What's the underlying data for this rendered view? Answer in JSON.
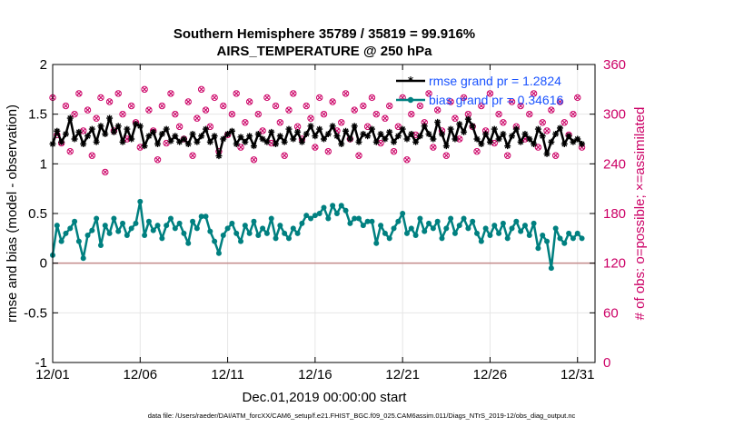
{
  "chart_data": {
    "type": "line",
    "title": "Southern Hemisphere 35789 / 35819 = 99.916%",
    "subtitle": "AIRS_TEMPERATURE @ 250 hPa",
    "xlabel": "Dec.01,2019 00:00:00 start",
    "ylabel_left": "rmse and bias (model - observation)",
    "ylabel_right": "# of obs: o=possible; ×=assimilated",
    "xlim": [
      1,
      32
    ],
    "ylim_left": [
      -1,
      2
    ],
    "ylim_right": [
      0,
      360
    ],
    "x_ticks": [
      1,
      6,
      11,
      16,
      21,
      26,
      31
    ],
    "x_tick_labels": [
      "12/01",
      "12/06",
      "12/11",
      "12/16",
      "12/21",
      "12/26",
      "12/31"
    ],
    "y_ticks_left": [
      -1,
      -0.5,
      0,
      0.5,
      1,
      1.5,
      2
    ],
    "y_tick_labels_left": [
      "-1",
      "-0.5",
      "0",
      "0.5",
      "1",
      "1.5",
      "2"
    ],
    "y_ticks_right": [
      0,
      60,
      120,
      180,
      240,
      300,
      360
    ],
    "y_tick_labels_right": [
      "0",
      "60",
      "120",
      "180",
      "240",
      "300",
      "360"
    ],
    "colors": {
      "rmse": "#000000",
      "bias": "#008080",
      "obs": "#cc0066",
      "zero_line": "#c48a8a",
      "grid": "#e6e6e6"
    },
    "series": [
      {
        "name": "rmse",
        "legend": "rmse grand pr = 1.2824",
        "color": "#000000",
        "marker": "asterisk",
        "x": [
          1.0,
          1.25,
          1.5,
          1.75,
          2.0,
          2.25,
          2.5,
          2.75,
          3.0,
          3.25,
          3.5,
          3.75,
          4.0,
          4.25,
          4.5,
          4.75,
          5.0,
          5.25,
          5.5,
          5.75,
          6.0,
          6.25,
          6.5,
          6.75,
          7.0,
          7.25,
          7.5,
          7.75,
          8.0,
          8.25,
          8.5,
          8.75,
          9.0,
          9.25,
          9.5,
          9.75,
          10.0,
          10.25,
          10.5,
          10.75,
          11.0,
          11.25,
          11.5,
          11.75,
          12.0,
          12.25,
          12.5,
          12.75,
          13.0,
          13.25,
          13.5,
          13.75,
          14.0,
          14.25,
          14.5,
          14.75,
          15.0,
          15.25,
          15.5,
          15.75,
          16.0,
          16.25,
          16.5,
          16.75,
          17.0,
          17.25,
          17.5,
          17.75,
          18.0,
          18.25,
          18.5,
          18.75,
          19.0,
          19.25,
          19.5,
          19.75,
          20.0,
          20.25,
          20.5,
          20.75,
          21.0,
          21.25,
          21.5,
          21.75,
          22.0,
          22.25,
          22.5,
          22.75,
          23.0,
          23.25,
          23.5,
          23.75,
          24.0,
          24.25,
          24.5,
          24.75,
          25.0,
          25.25,
          25.5,
          25.75,
          26.0,
          26.25,
          26.5,
          26.75,
          27.0,
          27.25,
          27.5,
          27.75,
          28.0,
          28.25,
          28.5,
          28.75,
          29.0,
          29.25,
          29.5,
          29.75,
          30.0,
          30.25,
          30.5,
          30.75,
          31.0,
          31.25
        ],
        "values": [
          1.2,
          1.33,
          1.22,
          1.3,
          1.46,
          1.25,
          1.32,
          1.2,
          1.28,
          1.35,
          1.22,
          1.38,
          1.3,
          1.46,
          1.32,
          1.38,
          1.22,
          1.35,
          1.25,
          1.4,
          1.38,
          1.18,
          1.28,
          1.32,
          1.2,
          1.3,
          1.35,
          1.23,
          1.28,
          1.22,
          1.25,
          1.2,
          1.3,
          1.22,
          1.28,
          1.35,
          1.22,
          1.28,
          1.08,
          1.25,
          1.3,
          1.33,
          1.2,
          1.27,
          1.22,
          1.28,
          1.18,
          1.3,
          1.25,
          1.22,
          1.32,
          1.2,
          1.28,
          1.22,
          1.35,
          1.25,
          1.32,
          1.22,
          1.3,
          1.38,
          1.28,
          1.35,
          1.25,
          1.3,
          1.38,
          1.28,
          1.2,
          1.33,
          1.25,
          1.38,
          1.22,
          1.3,
          1.28,
          1.35,
          1.22,
          1.3,
          1.25,
          1.32,
          1.22,
          1.28,
          1.35,
          1.25,
          1.3,
          1.22,
          1.28,
          1.38,
          1.3,
          1.25,
          1.42,
          1.3,
          1.18,
          1.35,
          1.25,
          1.4,
          1.32,
          1.45,
          1.38,
          1.25,
          1.2,
          1.3,
          1.22,
          1.35,
          1.25,
          1.3,
          1.18,
          1.28,
          1.35,
          1.22,
          1.3,
          1.25,
          1.2,
          1.35,
          1.28,
          1.1,
          1.22,
          1.3,
          1.36,
          1.2,
          1.28,
          1.22,
          1.25,
          1.2
        ]
      },
      {
        "name": "bias",
        "legend": "bias grand pr = 0.34616",
        "color": "#008080",
        "marker": "dot",
        "x": [
          1.0,
          1.25,
          1.5,
          1.75,
          2.0,
          2.25,
          2.5,
          2.75,
          3.0,
          3.25,
          3.5,
          3.75,
          4.0,
          4.25,
          4.5,
          4.75,
          5.0,
          5.25,
          5.5,
          5.75,
          6.0,
          6.25,
          6.5,
          6.75,
          7.0,
          7.25,
          7.5,
          7.75,
          8.0,
          8.25,
          8.5,
          8.75,
          9.0,
          9.25,
          9.5,
          9.75,
          10.0,
          10.25,
          10.5,
          10.75,
          11.0,
          11.25,
          11.5,
          11.75,
          12.0,
          12.25,
          12.5,
          12.75,
          13.0,
          13.25,
          13.5,
          13.75,
          14.0,
          14.25,
          14.5,
          14.75,
          15.0,
          15.25,
          15.5,
          15.75,
          16.0,
          16.25,
          16.5,
          16.75,
          17.0,
          17.25,
          17.5,
          17.75,
          18.0,
          18.25,
          18.5,
          18.75,
          19.0,
          19.25,
          19.5,
          19.75,
          20.0,
          20.25,
          20.5,
          20.75,
          21.0,
          21.25,
          21.5,
          21.75,
          22.0,
          22.25,
          22.5,
          22.75,
          23.0,
          23.25,
          23.5,
          23.75,
          24.0,
          24.25,
          24.5,
          24.75,
          25.0,
          25.25,
          25.5,
          25.75,
          26.0,
          26.25,
          26.5,
          26.75,
          27.0,
          27.25,
          27.5,
          27.75,
          28.0,
          28.25,
          28.5,
          28.75,
          29.0,
          29.25,
          29.5,
          29.75,
          30.0,
          30.25,
          30.5,
          30.75,
          31.0,
          31.25
        ],
        "values": [
          0.08,
          0.38,
          0.22,
          0.3,
          0.35,
          0.42,
          0.22,
          0.05,
          0.28,
          0.33,
          0.45,
          0.18,
          0.38,
          0.3,
          0.45,
          0.32,
          0.4,
          0.28,
          0.35,
          0.4,
          0.62,
          0.28,
          0.42,
          0.33,
          0.38,
          0.25,
          0.38,
          0.45,
          0.35,
          0.4,
          0.3,
          0.2,
          0.42,
          0.35,
          0.47,
          0.47,
          0.32,
          0.22,
          0.1,
          0.28,
          0.35,
          0.4,
          0.3,
          0.22,
          0.38,
          0.3,
          0.42,
          0.28,
          0.35,
          0.3,
          0.45,
          0.25,
          0.38,
          0.3,
          0.25,
          0.35,
          0.3,
          0.4,
          0.48,
          0.45,
          0.48,
          0.5,
          0.56,
          0.45,
          0.58,
          0.5,
          0.58,
          0.53,
          0.4,
          0.45,
          0.45,
          0.38,
          0.42,
          0.42,
          0.2,
          0.38,
          0.3,
          0.25,
          0.35,
          0.42,
          0.5,
          0.3,
          0.35,
          0.28,
          0.45,
          0.32,
          0.4,
          0.35,
          0.42,
          0.25,
          0.35,
          0.45,
          0.3,
          0.38,
          0.45,
          0.35,
          0.42,
          0.3,
          0.22,
          0.35,
          0.28,
          0.38,
          0.3,
          0.4,
          0.25,
          0.35,
          0.42,
          0.32,
          0.38,
          0.28,
          0.4,
          0.15,
          0.28,
          0.22,
          -0.05,
          0.35,
          0.25,
          0.2,
          0.3,
          0.25,
          0.3,
          0.25
        ]
      },
      {
        "name": "obs_possible",
        "axis": "right",
        "color": "#cc0066",
        "marker": "circle",
        "x": [
          1.0,
          1.25,
          1.5,
          1.75,
          2.0,
          2.25,
          2.5,
          2.75,
          3.0,
          3.25,
          3.5,
          3.75,
          4.0,
          4.25,
          4.5,
          4.75,
          5.0,
          5.25,
          5.5,
          5.75,
          6.0,
          6.25,
          6.5,
          6.75,
          7.0,
          7.25,
          7.5,
          7.75,
          8.0,
          8.25,
          8.5,
          8.75,
          9.0,
          9.25,
          9.5,
          9.75,
          10.0,
          10.25,
          10.5,
          10.75,
          11.0,
          11.25,
          11.5,
          11.75,
          12.0,
          12.25,
          12.5,
          12.75,
          13.0,
          13.25,
          13.5,
          13.75,
          14.0,
          14.25,
          14.5,
          14.75,
          15.0,
          15.25,
          15.5,
          15.75,
          16.0,
          16.25,
          16.5,
          16.75,
          17.0,
          17.25,
          17.5,
          17.75,
          18.0,
          18.25,
          18.5,
          18.75,
          19.0,
          19.25,
          19.5,
          19.75,
          20.0,
          20.25,
          20.5,
          20.75,
          21.0,
          21.25,
          21.5,
          21.75,
          22.0,
          22.25,
          22.5,
          22.75,
          23.0,
          23.25,
          23.5,
          23.75,
          24.0,
          24.25,
          24.5,
          24.75,
          25.0,
          25.25,
          25.5,
          25.75,
          26.0,
          26.25,
          26.5,
          26.75,
          27.0,
          27.25,
          27.5,
          27.75,
          28.0,
          28.25,
          28.5,
          28.75,
          29.0,
          29.25,
          29.5,
          29.75,
          30.0,
          30.25,
          30.5,
          30.75,
          31.0,
          31.25
        ],
        "values": [
          320,
          275,
          265,
          310,
          255,
          300,
          325,
          280,
          305,
          250,
          295,
          320,
          230,
          315,
          280,
          325,
          300,
          270,
          310,
          290,
          260,
          330,
          305,
          280,
          245,
          310,
          265,
          325,
          300,
          285,
          270,
          315,
          250,
          295,
          330,
          305,
          285,
          320,
          255,
          310,
          275,
          300,
          325,
          260,
          290,
          315,
          245,
          300,
          280,
          320,
          265,
          310,
          290,
          250,
          305,
          325,
          285,
          270,
          310,
          295,
          260,
          320,
          300,
          255,
          315,
          280,
          290,
          325,
          270,
          305,
          250,
          310,
          285,
          320,
          300,
          265,
          295,
          310,
          255,
          285,
          320,
          245,
          300,
          275,
          310,
          290,
          325,
          260,
          305,
          280,
          250,
          315,
          295,
          270,
          320,
          300,
          285,
          255,
          310,
          280,
          325,
          265,
          300,
          290,
          250,
          315,
          285,
          310,
          270,
          300,
          325,
          260,
          290,
          280,
          305,
          250,
          315,
          290,
          275,
          300,
          320,
          260
        ]
      },
      {
        "name": "obs_assimilated",
        "axis": "right",
        "color": "#cc0066",
        "marker": "x",
        "x": [
          1.0,
          1.25,
          1.5,
          1.75,
          2.0,
          2.25,
          2.5,
          2.75,
          3.0,
          3.25,
          3.5,
          3.75,
          4.0,
          4.25,
          4.5,
          4.75,
          5.0,
          5.25,
          5.5,
          5.75,
          6.0,
          6.25,
          6.5,
          6.75,
          7.0,
          7.25,
          7.5,
          7.75,
          8.0,
          8.25,
          8.5,
          8.75,
          9.0,
          9.25,
          9.5,
          9.75,
          10.0,
          10.25,
          10.5,
          10.75,
          11.0,
          11.25,
          11.5,
          11.75,
          12.0,
          12.25,
          12.5,
          12.75,
          13.0,
          13.25,
          13.5,
          13.75,
          14.0,
          14.25,
          14.5,
          14.75,
          15.0,
          15.25,
          15.5,
          15.75,
          16.0,
          16.25,
          16.5,
          16.75,
          17.0,
          17.25,
          17.5,
          17.75,
          18.0,
          18.25,
          18.5,
          18.75,
          19.0,
          19.25,
          19.5,
          19.75,
          20.0,
          20.25,
          20.5,
          20.75,
          21.0,
          21.25,
          21.5,
          21.75,
          22.0,
          22.25,
          22.5,
          22.75,
          23.0,
          23.25,
          23.5,
          23.75,
          24.0,
          24.25,
          24.5,
          24.75,
          25.0,
          25.25,
          25.5,
          25.75,
          26.0,
          26.25,
          26.5,
          26.75,
          27.0,
          27.25,
          27.5,
          27.75,
          28.0,
          28.25,
          28.5,
          28.75,
          29.0,
          29.25,
          29.5,
          29.75,
          30.0,
          30.25,
          30.5,
          30.75,
          31.0,
          31.25
        ],
        "values": [
          320,
          275,
          265,
          310,
          255,
          300,
          325,
          280,
          305,
          250,
          295,
          320,
          230,
          315,
          280,
          325,
          300,
          270,
          310,
          290,
          260,
          330,
          305,
          280,
          245,
          310,
          265,
          325,
          300,
          285,
          270,
          315,
          250,
          295,
          330,
          305,
          285,
          320,
          255,
          310,
          275,
          300,
          325,
          260,
          290,
          315,
          245,
          300,
          280,
          320,
          265,
          310,
          290,
          250,
          305,
          325,
          285,
          270,
          310,
          295,
          260,
          320,
          300,
          255,
          315,
          280,
          290,
          325,
          270,
          305,
          250,
          310,
          285,
          320,
          300,
          265,
          295,
          310,
          255,
          285,
          320,
          245,
          300,
          275,
          310,
          290,
          325,
          260,
          305,
          280,
          250,
          315,
          295,
          270,
          320,
          300,
          285,
          255,
          310,
          280,
          325,
          265,
          300,
          290,
          250,
          315,
          285,
          310,
          270,
          300,
          325,
          260,
          290,
          280,
          305,
          250,
          315,
          290,
          275,
          300,
          320,
          260
        ]
      }
    ],
    "footer": "data file: /Users/raeder/DAI/ATM_forcXX/CAM6_setup/f.e21.FHIST_BGC.f09_025.CAM6assim.011/Diags_NTrS_2019-12/obs_diag_output.nc",
    "legend_position": "top-right",
    "grid": true
  }
}
